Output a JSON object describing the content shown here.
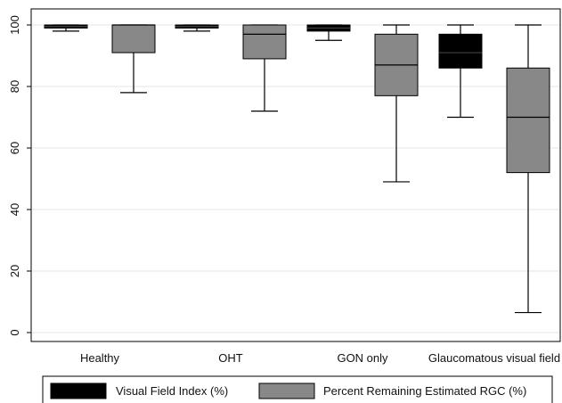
{
  "chart_data": {
    "type": "boxplot",
    "title": "",
    "xlabel": "",
    "ylabel": "",
    "ylim": [
      0,
      100
    ],
    "yticks": [
      "0",
      "20",
      "40",
      "60",
      "80",
      "100"
    ],
    "grid": true,
    "legend_position": "bottom",
    "categories": [
      "Healthy",
      "OHT",
      "GON only",
      "Glaucomatous visual field"
    ],
    "series": [
      {
        "name": "Visual Field Index (%)",
        "color": "#000000",
        "boxes": [
          {
            "whisker_low": 98,
            "q1": 99,
            "median": 99.5,
            "q3": 100,
            "whisker_high": 100
          },
          {
            "whisker_low": 98,
            "q1": 99,
            "median": 99.5,
            "q3": 100,
            "whisker_high": 100
          },
          {
            "whisker_low": 95,
            "q1": 98,
            "median": 99,
            "q3": 100,
            "whisker_high": 100
          },
          {
            "whisker_low": 70,
            "q1": 86,
            "median": 91,
            "q3": 97,
            "whisker_high": 100
          }
        ]
      },
      {
        "name": "Percent Remaining Estimated RGC (%)",
        "color": "#888888",
        "boxes": [
          {
            "whisker_low": 78,
            "q1": 91,
            "median": 100,
            "q3": 100,
            "whisker_high": 100
          },
          {
            "whisker_low": 72,
            "q1": 89,
            "median": 97,
            "q3": 100,
            "whisker_high": 100
          },
          {
            "whisker_low": 49,
            "q1": 77,
            "median": 87,
            "q3": 97,
            "whisker_high": 100
          },
          {
            "whisker_low": 6.5,
            "q1": 52,
            "median": 70,
            "q3": 86,
            "whisker_high": 100
          }
        ]
      }
    ]
  }
}
